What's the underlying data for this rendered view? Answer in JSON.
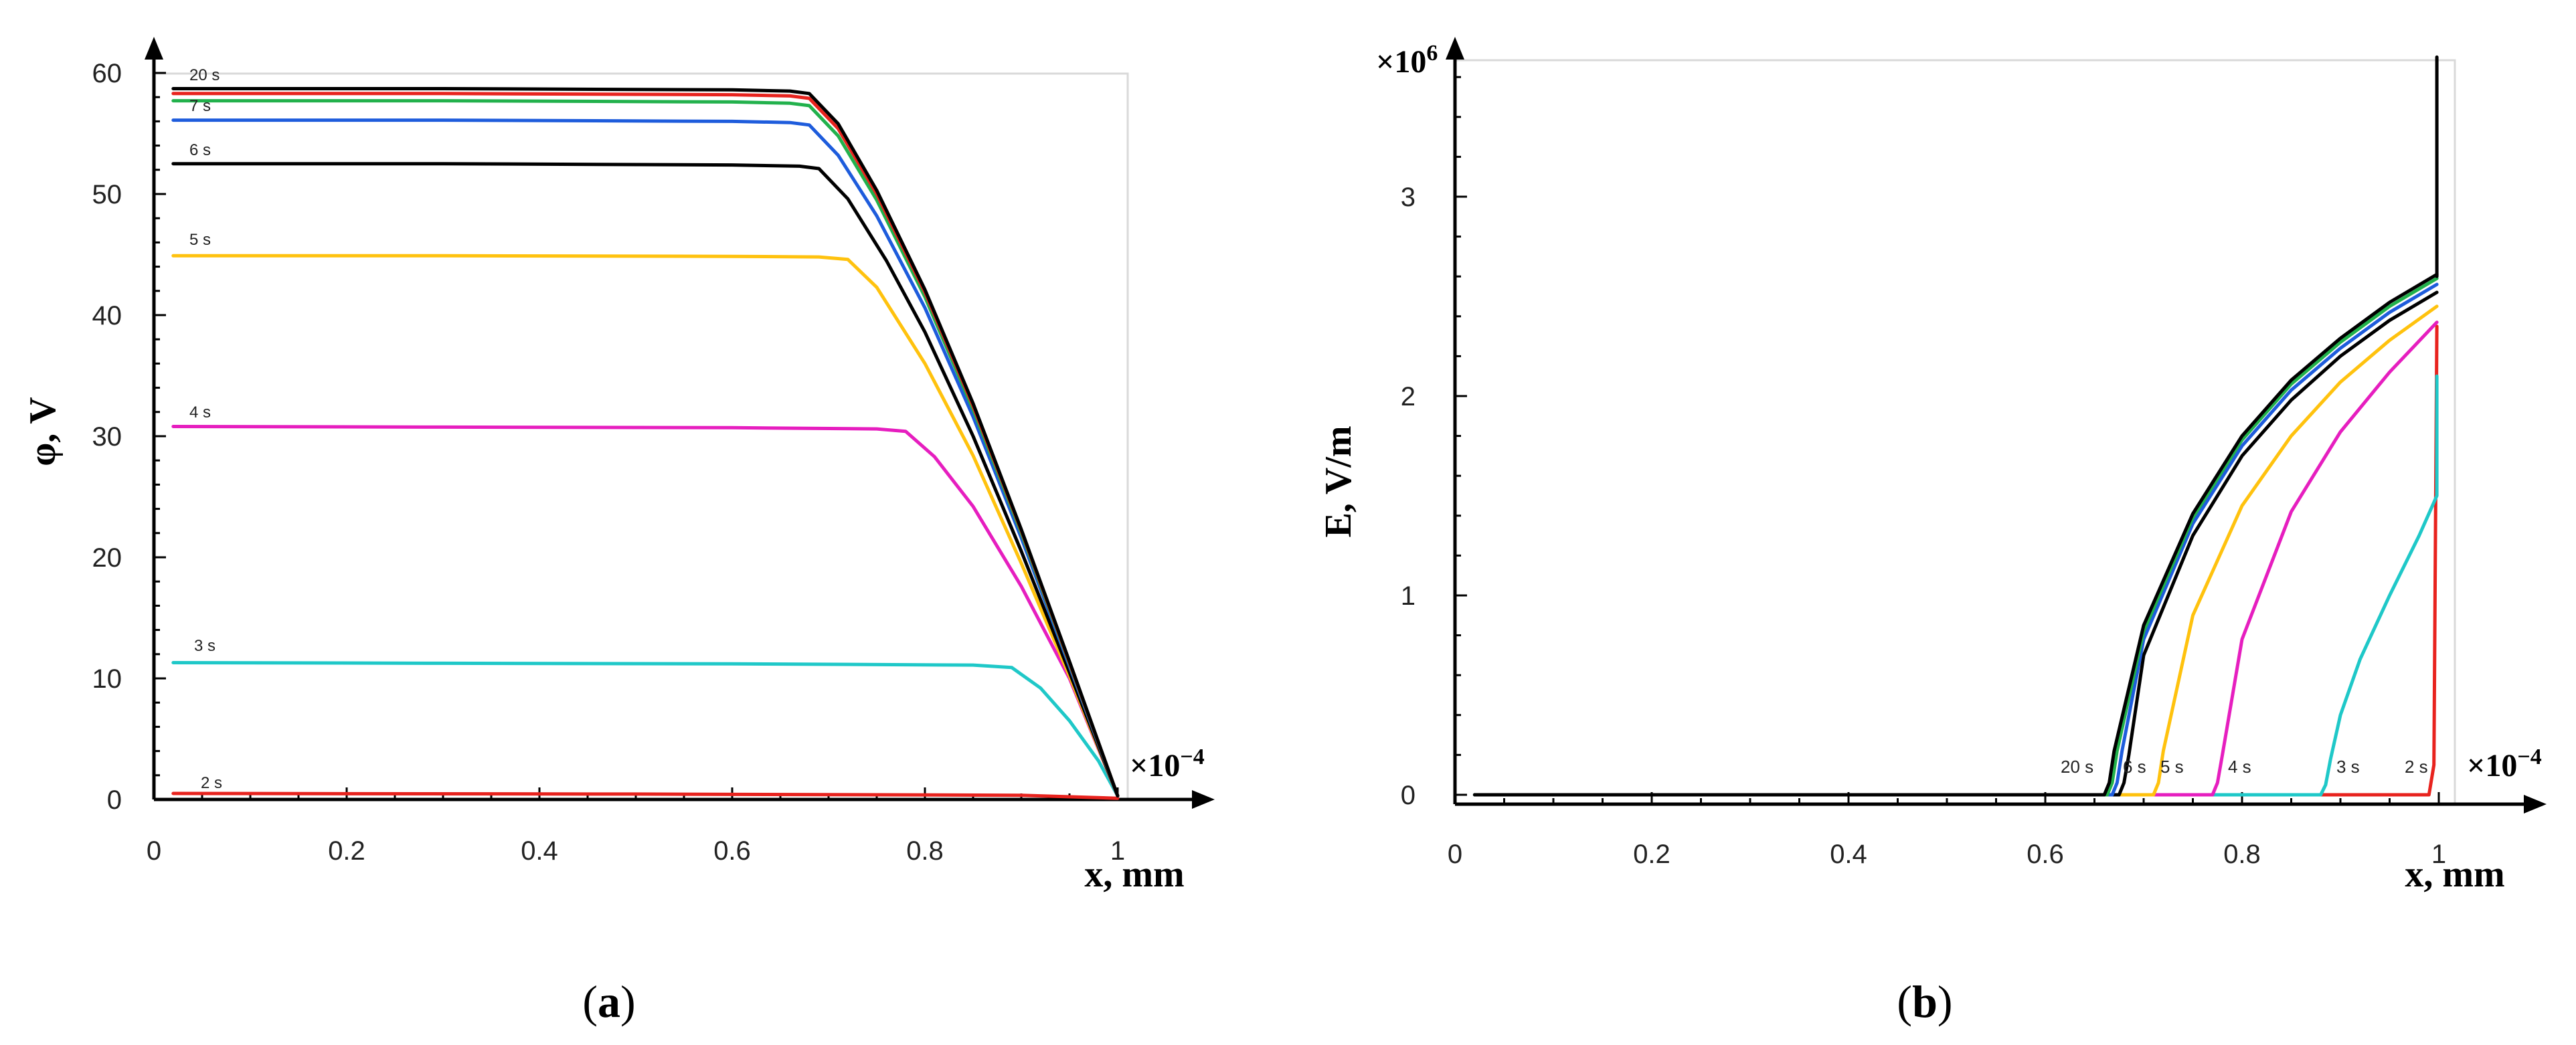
{
  "panel_a": {
    "label_open": "(",
    "label_letter": "a",
    "label_close": ")"
  },
  "panel_b": {
    "label_open": "(",
    "label_letter": "b",
    "label_close": ")"
  },
  "chart_data": [
    {
      "id": "a",
      "type": "line",
      "title": "",
      "xlabel": "x, mm",
      "ylabel": "φ, V",
      "x_multiplier": "×10",
      "x_multiplier_exp": "−4",
      "xlim": [
        0,
        1
      ],
      "ylim": [
        0,
        60
      ],
      "xticks": [
        0,
        0.2,
        0.4,
        0.6,
        0.8,
        1
      ],
      "xtick_labels": [
        "0",
        "0.2",
        "0.4",
        "0.6",
        "0.8",
        "1"
      ],
      "yticks": [
        0,
        10,
        20,
        30,
        40,
        50,
        60
      ],
      "ytick_labels": [
        "0",
        "10",
        "20",
        "30",
        "40",
        "50",
        "60"
      ],
      "series": [
        {
          "name": "2 s",
          "color": "#e8231e",
          "x": [
            0.02,
            0.5,
            0.9,
            1.0
          ],
          "y": [
            0.5,
            0.45,
            0.35,
            0.1
          ]
        },
        {
          "name": "3 s",
          "color": "#1fc8c8",
          "x": [
            0.02,
            0.3,
            0.6,
            0.85,
            0.89,
            0.92,
            0.95,
            0.98,
            1.0
          ],
          "y": [
            11.3,
            11.25,
            11.2,
            11.1,
            10.9,
            9.2,
            6.5,
            3.2,
            0.3
          ]
        },
        {
          "name": "4 s",
          "color": "#e61ebf",
          "x": [
            0.02,
            0.3,
            0.6,
            0.75,
            0.78,
            0.81,
            0.85,
            0.9,
            0.95,
            1.0
          ],
          "y": [
            30.8,
            30.75,
            30.7,
            30.6,
            30.4,
            28.3,
            24.2,
            17.6,
            10.0,
            0.3
          ]
        },
        {
          "name": "5 s",
          "color": "#ffc20e",
          "x": [
            0.02,
            0.3,
            0.6,
            0.69,
            0.72,
            0.75,
            0.8,
            0.85,
            0.9,
            0.95,
            1.0
          ],
          "y": [
            44.9,
            44.9,
            44.85,
            44.8,
            44.6,
            42.3,
            36.0,
            28.4,
            19.5,
            10.2,
            0.3
          ]
        },
        {
          "name": "6 s",
          "color": "#000000",
          "x": [
            0.02,
            0.3,
            0.6,
            0.67,
            0.69,
            0.72,
            0.76,
            0.8,
            0.85,
            0.9,
            0.95,
            1.0
          ],
          "y": [
            52.5,
            52.5,
            52.4,
            52.3,
            52.1,
            49.6,
            44.5,
            38.6,
            30.0,
            20.5,
            10.5,
            0.3
          ]
        },
        {
          "name": "7 s",
          "color": "#1e5cdc",
          "x": [
            0.02,
            0.3,
            0.6,
            0.66,
            0.68,
            0.71,
            0.75,
            0.8,
            0.85,
            0.9,
            0.95,
            1.0
          ],
          "y": [
            56.1,
            56.1,
            56.0,
            55.9,
            55.7,
            53.2,
            48.2,
            40.6,
            31.6,
            21.6,
            11.0,
            0.3
          ]
        },
        {
          "name": "",
          "color": "#22b14c",
          "x": [
            0.02,
            0.3,
            0.6,
            0.66,
            0.68,
            0.71,
            0.75,
            0.8,
            0.85,
            0.9,
            0.95,
            1.0
          ],
          "y": [
            57.7,
            57.7,
            57.6,
            57.5,
            57.3,
            54.8,
            49.5,
            41.5,
            32.2,
            22.0,
            11.2,
            0.3
          ]
        },
        {
          "name": "",
          "color": "#e8231e",
          "x": [
            0.02,
            0.3,
            0.6,
            0.66,
            0.68,
            0.71,
            0.75,
            0.8,
            0.85,
            0.9,
            0.95,
            1.0
          ],
          "y": [
            58.3,
            58.3,
            58.2,
            58.1,
            57.9,
            55.4,
            50.0,
            41.9,
            32.5,
            22.2,
            11.3,
            0.3
          ]
        },
        {
          "name": "20 s",
          "color": "#000000",
          "x": [
            0.02,
            0.3,
            0.6,
            0.66,
            0.68,
            0.71,
            0.75,
            0.8,
            0.85,
            0.9,
            0.95,
            1.0
          ],
          "y": [
            58.7,
            58.7,
            58.6,
            58.5,
            58.3,
            55.8,
            50.3,
            42.1,
            32.7,
            22.3,
            11.4,
            0.3
          ]
        }
      ]
    },
    {
      "id": "b",
      "type": "line",
      "title": "",
      "xlabel": "x, mm",
      "ylabel": "E, V/m",
      "x_multiplier": "×10",
      "x_multiplier_exp": "−4",
      "y_multiplier": "×10",
      "y_multiplier_exp": "6",
      "xlim": [
        0,
        1
      ],
      "ylim": [
        0,
        3.7
      ],
      "xticks": [
        0,
        0.2,
        0.4,
        0.6,
        0.8,
        1
      ],
      "xtick_labels": [
        "0",
        "0.2",
        "0.4",
        "0.6",
        "0.8",
        "1"
      ],
      "yticks": [
        0,
        1,
        2,
        3
      ],
      "ytick_labels": [
        "0",
        "1",
        "2",
        "3"
      ],
      "series": [
        {
          "name": "2 s",
          "color": "#e8231e",
          "x": [
            0.02,
            0.5,
            0.99,
            0.995,
            0.998
          ],
          "y": [
            0.0,
            0.0,
            0.0,
            0.15,
            2.35
          ]
        },
        {
          "name": "3 s",
          "color": "#1fc8c8",
          "x": [
            0.02,
            0.5,
            0.88,
            0.885,
            0.89,
            0.9,
            0.92,
            0.95,
            0.98,
            0.998,
            0.998
          ],
          "y": [
            0.0,
            0.0,
            0.0,
            0.05,
            0.18,
            0.4,
            0.68,
            1.0,
            1.3,
            1.5,
            2.1
          ]
        },
        {
          "name": "4 s",
          "color": "#e61ebf",
          "x": [
            0.02,
            0.5,
            0.77,
            0.775,
            0.78,
            0.8,
            0.85,
            0.9,
            0.95,
            0.998
          ],
          "y": [
            0.0,
            0.0,
            0.0,
            0.06,
            0.2,
            0.78,
            1.42,
            1.82,
            2.12,
            2.37
          ]
        },
        {
          "name": "5 s",
          "color": "#ffc20e",
          "x": [
            0.02,
            0.5,
            0.71,
            0.715,
            0.72,
            0.75,
            0.8,
            0.85,
            0.9,
            0.95,
            0.998
          ],
          "y": [
            0.0,
            0.0,
            0.0,
            0.06,
            0.22,
            0.9,
            1.45,
            1.8,
            2.07,
            2.28,
            2.45
          ]
        },
        {
          "name": "6 s",
          "color": "#000000",
          "x": [
            0.02,
            0.5,
            0.675,
            0.68,
            0.685,
            0.7,
            0.75,
            0.8,
            0.85,
            0.9,
            0.95,
            0.998
          ],
          "y": [
            0.0,
            0.0,
            0.0,
            0.06,
            0.2,
            0.7,
            1.3,
            1.7,
            1.98,
            2.2,
            2.38,
            2.52
          ]
        },
        {
          "name": "",
          "color": "#1e5cdc",
          "x": [
            0.02,
            0.5,
            0.668,
            0.673,
            0.678,
            0.7,
            0.75,
            0.8,
            0.85,
            0.9,
            0.95,
            0.998
          ],
          "y": [
            0.0,
            0.0,
            0.0,
            0.06,
            0.22,
            0.78,
            1.36,
            1.75,
            2.03,
            2.24,
            2.42,
            2.56
          ]
        },
        {
          "name": "",
          "color": "#22b14c",
          "x": [
            0.02,
            0.5,
            0.663,
            0.668,
            0.673,
            0.7,
            0.75,
            0.8,
            0.85,
            0.9,
            0.95,
            0.998
          ],
          "y": [
            0.0,
            0.0,
            0.0,
            0.06,
            0.22,
            0.82,
            1.39,
            1.78,
            2.06,
            2.27,
            2.45,
            2.59
          ]
        },
        {
          "name": "20 s",
          "color": "#000000",
          "x": [
            0.02,
            0.5,
            0.66,
            0.665,
            0.67,
            0.7,
            0.75,
            0.8,
            0.85,
            0.9,
            0.95,
            0.998
          ],
          "y": [
            0.0,
            0.0,
            0.0,
            0.06,
            0.22,
            0.85,
            1.41,
            1.8,
            2.08,
            2.29,
            2.47,
            2.61
          ]
        },
        {
          "name": "",
          "color": "#000000",
          "x": [
            0.998,
            0.998
          ],
          "y": [
            2.6,
            3.7
          ]
        }
      ]
    }
  ]
}
